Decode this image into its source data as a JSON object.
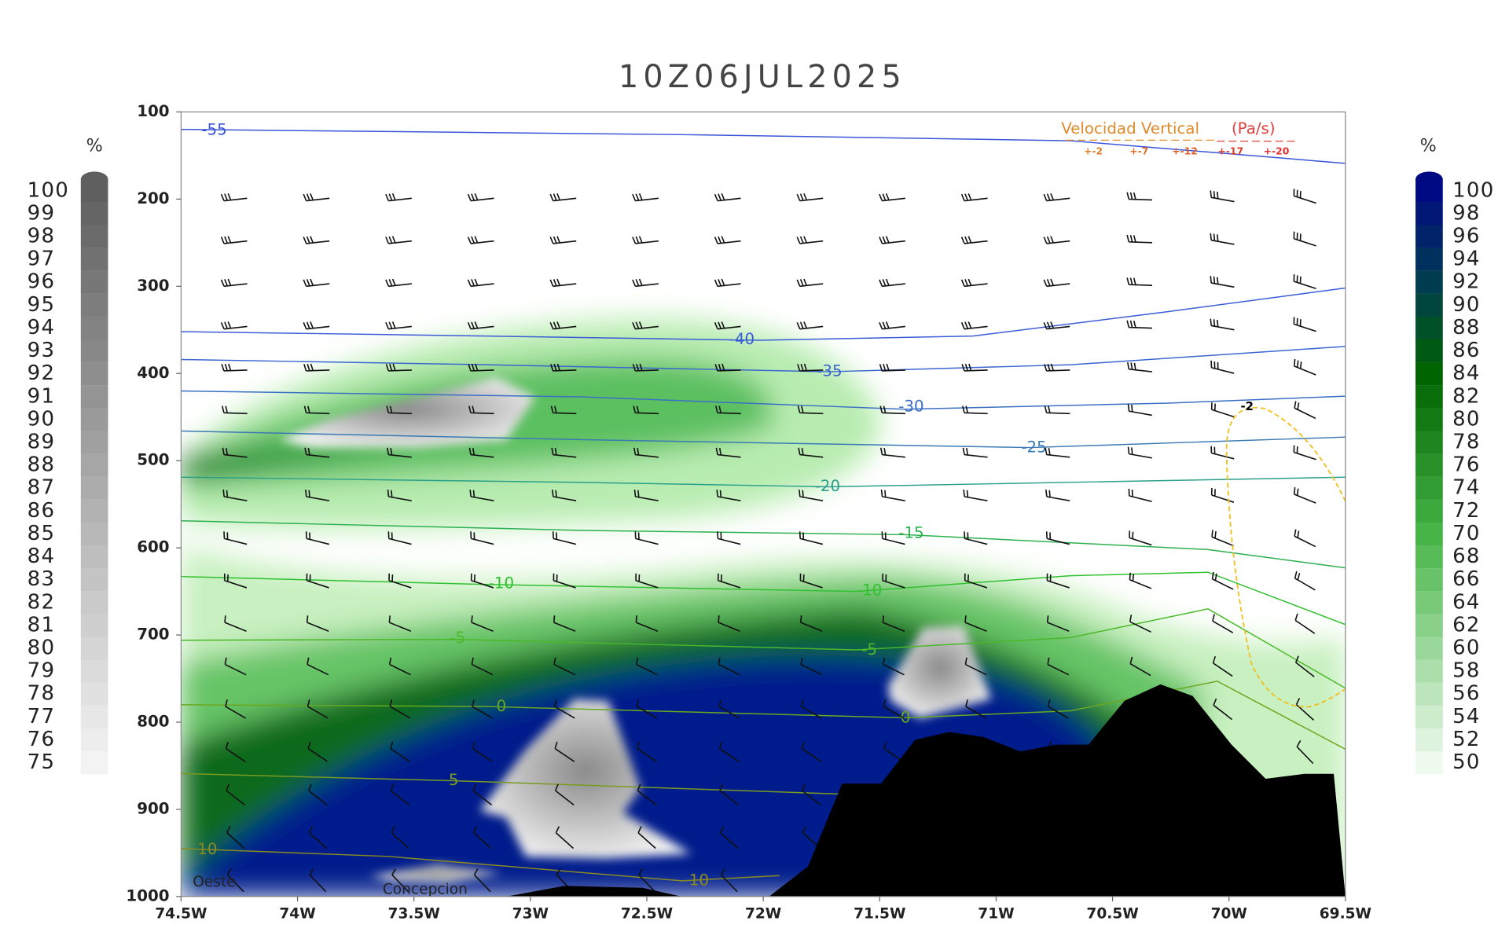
{
  "chart_data": {
    "type": "cross-section",
    "title": "10Z06JUL2025",
    "xlim": [
      -74.5,
      -69.5
    ],
    "xticks": [
      {
        "value": -74.5,
        "label": "74.5W"
      },
      {
        "value": -74,
        "label": "74W"
      },
      {
        "value": -73.5,
        "label": "73.5W"
      },
      {
        "value": -73,
        "label": "73W"
      },
      {
        "value": -72.5,
        "label": "72.5W"
      },
      {
        "value": -72,
        "label": "72W"
      },
      {
        "value": -71.5,
        "label": "71.5W"
      },
      {
        "value": -71,
        "label": "71W"
      },
      {
        "value": -70.5,
        "label": "70.5W"
      },
      {
        "value": -70,
        "label": "70W"
      },
      {
        "value": -69.5,
        "label": "69.5W"
      }
    ],
    "ylim": [
      100,
      1000
    ],
    "yticks": [
      100,
      200,
      300,
      400,
      500,
      600,
      700,
      800,
      900,
      1000
    ],
    "contours": [
      {
        "level": -55,
        "color": "#3b55d8",
        "x": [
          -74.5,
          -72.35,
          -70.68,
          -69.5
        ],
        "y": [
          120,
          126,
          133,
          159
        ]
      },
      {
        "level": -40,
        "color": "#3b5cd8",
        "x": [
          -74.5,
          -73.19,
          -72.02,
          -71.1,
          -70.26,
          -69.5
        ],
        "y": [
          352,
          357,
          362,
          357,
          329,
          302
        ]
      },
      {
        "level": -35,
        "color": "#3a66d0",
        "x": [
          -74.5,
          -73.19,
          -71.72,
          -70.68,
          -69.5
        ],
        "y": [
          384,
          390,
          398,
          390,
          369
        ]
      },
      {
        "level": -30,
        "color": "#3a70c4",
        "x": [
          -74.5,
          -72.77,
          -71.39,
          -70.26,
          -69.5
        ],
        "y": [
          420,
          427,
          441,
          434,
          426
        ]
      },
      {
        "level": -25,
        "color": "#3a7ab4",
        "x": [
          -74.5,
          -72.77,
          -70.85,
          -69.5
        ],
        "y": [
          466,
          476,
          485,
          473
        ]
      },
      {
        "level": -20,
        "color": "#2aa08a",
        "x": [
          -74.5,
          -72.77,
          -71.72,
          -69.5
        ],
        "y": [
          519,
          525,
          530,
          519
        ]
      },
      {
        "level": -15,
        "color": "#2cb050",
        "x": [
          -74.5,
          -72.77,
          -71.39,
          -70.09,
          -69.5
        ],
        "y": [
          569,
          580,
          585,
          602,
          623
        ]
      },
      {
        "level": -10,
        "color": "#30c030",
        "x": [
          -74.5,
          -73.19,
          -71.6,
          -70.68,
          -70.09,
          -69.5
        ],
        "y": [
          633,
          642,
          650,
          632,
          628,
          688
        ]
      },
      {
        "level": -5,
        "color": "#4ab828",
        "x": [
          -74.5,
          -73.31,
          -71.6,
          -70.68,
          -70.09,
          -69.5
        ],
        "y": [
          706,
          705,
          717,
          703,
          670,
          761
        ]
      },
      {
        "level": 0,
        "color": "#6aa820",
        "x": [
          -74.5,
          -73.19,
          -71.39,
          -70.68,
          -70.05,
          -69.5
        ],
        "y": [
          780,
          782,
          795,
          787,
          753,
          831
        ]
      },
      {
        "level": 5,
        "color": "#7a9a20",
        "x": [
          -74.5,
          -73.35,
          -71.72,
          -71.39
        ],
        "y": [
          859,
          867,
          882,
          885
        ]
      },
      {
        "level": 10,
        "color": "#8a8a20",
        "x": [
          -74.5,
          -73.61,
          -72.35,
          -71.93
        ],
        "y": [
          945,
          954,
          982,
          976
        ]
      }
    ],
    "colorbars": [
      {
        "unit": "%",
        "levels": [
          100,
          99,
          98,
          97,
          96,
          95,
          94,
          93,
          92,
          91,
          90,
          89,
          88,
          87,
          86,
          85,
          84,
          83,
          82,
          81,
          80,
          79,
          78,
          77,
          76,
          75
        ]
      },
      {
        "unit": "%",
        "levels": [
          100,
          98,
          96,
          94,
          92,
          90,
          88,
          86,
          84,
          82,
          80,
          78,
          76,
          74,
          72,
          70,
          68,
          66,
          64,
          62,
          60,
          58,
          56,
          54,
          52,
          50
        ]
      }
    ],
    "legend": {
      "title": "Velocidad Vertical",
      "unit": "(Pa/s)",
      "labels": [
        "+-2",
        "+-7",
        "+-12",
        "+-17",
        "+-20"
      ]
    },
    "vertical_velocity_contour": {
      "level": -2,
      "color": "#f0c020"
    },
    "annotations": [
      "Oeste",
      "Concepcion"
    ]
  }
}
